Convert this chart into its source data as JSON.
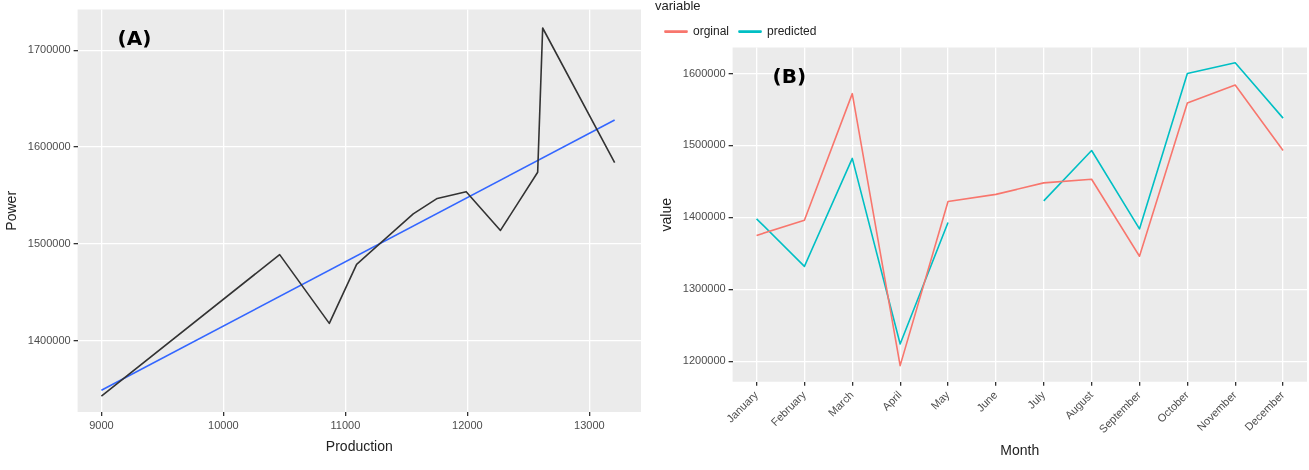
{
  "chart_data": [
    {
      "type": "line",
      "xlabel": "Production",
      "ylabel": "Power",
      "annotations": [
        "(A)"
      ],
      "xlim": [
        8805,
        13423
      ],
      "xticks": [
        9000,
        10000,
        11000,
        12000,
        13000
      ],
      "ylim": [
        1326500,
        1742000
      ],
      "yticks": [
        1400000,
        1500000,
        1600000,
        1700000
      ],
      "grid": true,
      "legend": false,
      "marker": "none",
      "line_style": "solid",
      "series": [
        {
          "color": "#333333",
          "x": [
            9000,
            10461,
            10868,
            11092,
            11556,
            11753,
            11990,
            12271,
            12576,
            12617,
            13207
          ],
          "values": [
            1343000,
            1489000,
            1418000,
            1479000,
            1531000,
            1547000,
            1554000,
            1514000,
            1574000,
            1723000,
            1584000
          ]
        },
        {
          "type": "line",
          "color": "#3366ff",
          "x": [
            9000,
            13207
          ],
          "values": [
            1349000,
            1628000
          ]
        }
      ]
    },
    {
      "type": "line",
      "xlabel": "Month",
      "ylabel": "value",
      "legend_title": "variable",
      "annotations": [
        "(B)"
      ],
      "categories": [
        "January",
        "February",
        "March",
        "April",
        "May",
        "June",
        "July",
        "August",
        "September",
        "October",
        "November",
        "December"
      ],
      "ylim": [
        1171500,
        1636000
      ],
      "yticks": [
        1200000,
        1300000,
        1400000,
        1500000,
        1600000
      ],
      "grid": true,
      "legend": "top left",
      "marker": "none",
      "line_style": "solid",
      "series": [
        {
          "name": "orginal",
          "color": "#f8766d",
          "values": [
            1375000,
            1396000,
            1572000,
            1194000,
            1422000,
            1432000,
            1448000,
            1453000,
            1346000,
            1559000,
            1584000,
            1493000
          ]
        },
        {
          "name": "predicted",
          "color": "#00bfc4",
          "values": [
            1398000,
            1332000,
            1482000,
            1224000,
            1393000,
            null,
            1423000,
            1493000,
            1384000,
            1600000,
            1615000,
            1538000
          ]
        }
      ]
    }
  ]
}
